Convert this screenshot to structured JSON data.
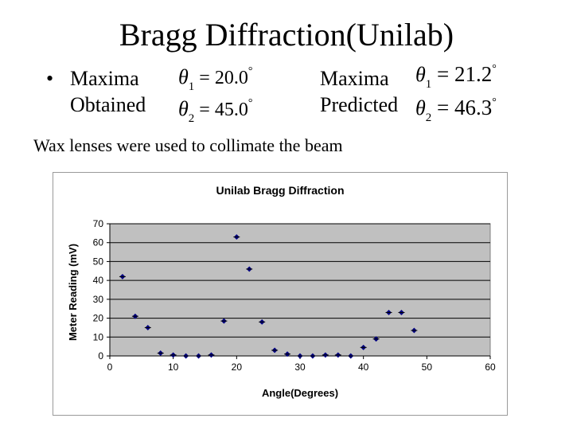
{
  "slide": {
    "title": "Bragg Diffraction(Unilab)",
    "bullet_marker": "•",
    "obtained_label_1": "Maxima",
    "obtained_label_2": "Obtained",
    "predicted_label_1": "Maxima",
    "predicted_label_2": "Predicted",
    "obtained": [
      {
        "symbol": "θ",
        "index": "1",
        "equals": "=",
        "value": "20.0",
        "degree": "°"
      },
      {
        "symbol": "θ",
        "index": "2",
        "equals": "=",
        "value": "45.0",
        "degree": "°"
      }
    ],
    "predicted": [
      {
        "symbol": "θ",
        "index": "1",
        "equals": "=",
        "value": "21.2",
        "degree": "°"
      },
      {
        "symbol": "θ",
        "index": "2",
        "equals": "=",
        "value": "46.3",
        "degree": "°"
      }
    ],
    "subtitle": "Wax lenses were used to collimate the beam"
  },
  "chart_data": {
    "type": "scatter",
    "title": "Unilab Bragg Diffraction",
    "xlabel": "Angle(Degrees)",
    "ylabel": "Meter Reading (mV)",
    "xlim": [
      0,
      60
    ],
    "ylim": [
      0,
      70
    ],
    "xticks": [
      0,
      10,
      20,
      30,
      40,
      50,
      60
    ],
    "yticks": [
      0,
      10,
      20,
      30,
      40,
      50,
      60,
      70
    ],
    "grid": true,
    "plot_background": "#c0c0c0",
    "marker_color": "#000080",
    "x": [
      2,
      4,
      6,
      8,
      10,
      12,
      14,
      16,
      18,
      20,
      22,
      24,
      26,
      28,
      30,
      32,
      34,
      36,
      38,
      40,
      42,
      44,
      46,
      48
    ],
    "y": [
      42,
      21,
      15,
      1.5,
      0.5,
      0,
      0,
      0.5,
      18.5,
      63,
      46,
      18,
      3,
      1,
      0,
      0,
      0.5,
      0.5,
      0,
      4.5,
      9,
      23,
      23,
      13.5
    ]
  }
}
